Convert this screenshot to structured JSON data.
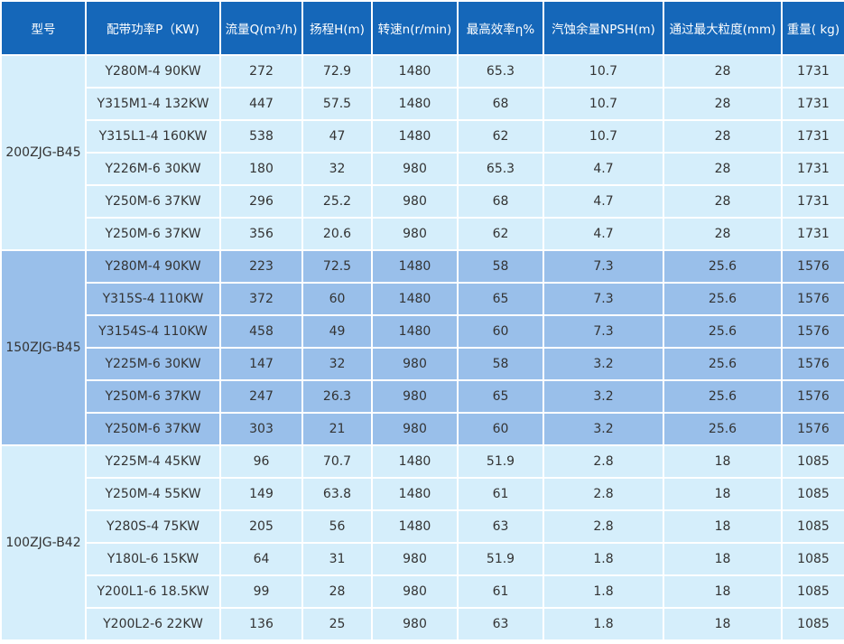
{
  "headers": [
    "型号",
    "配带功率P（KW)",
    "流量Q(m³/h)",
    "扬程H(m)",
    "转速n(r/min)",
    "最高效率η%",
    "汽蚀余量NPSH(m)",
    "通过最大粒度(mm)",
    "重量( kg)"
  ],
  "groups": [
    {
      "model": "200ZJG-B45",
      "rows": [
        [
          "Y280M-4  90KW",
          "272",
          "72.9",
          "1480",
          "65.3",
          "10.7",
          "28",
          "1731"
        ],
        [
          "Y315M1-4  132KW",
          "447",
          "57.5",
          "1480",
          "68",
          "10.7",
          "28",
          "1731"
        ],
        [
          "Y315L1-4  160KW",
          "538",
          "47",
          "1480",
          "62",
          "10.7",
          "28",
          "1731"
        ],
        [
          "Y226M-6  30KW",
          "180",
          "32",
          "980",
          "65.3",
          "4.7",
          "28",
          "1731"
        ],
        [
          "Y250M-6  37KW",
          "296",
          "25.2",
          "980",
          "68",
          "4.7",
          "28",
          "1731"
        ],
        [
          "Y250M-6 37KW",
          "356",
          "20.6",
          "980",
          "62",
          "4.7",
          "28",
          "1731"
        ]
      ]
    },
    {
      "model": "150ZJG-B45",
      "rows": [
        [
          "Y280M-4  90KW",
          "223",
          "72.5",
          "1480",
          "58",
          "7.3",
          "25.6",
          "1576"
        ],
        [
          "Y315S-4  110KW",
          "372",
          "60",
          "1480",
          "65",
          "7.3",
          "25.6",
          "1576"
        ],
        [
          "Y3154S-4  110KW",
          "458",
          "49",
          "1480",
          "60",
          "7.3",
          "25.6",
          "1576"
        ],
        [
          "Y225M-6  30KW",
          "147",
          "32",
          "980",
          "58",
          "3.2",
          "25.6",
          "1576"
        ],
        [
          "Y250M-6  37KW",
          "247",
          "26.3",
          "980",
          "65",
          "3.2",
          "25.6",
          "1576"
        ],
        [
          "Y250M-6  37KW",
          "303",
          "21",
          "980",
          "60",
          "3.2",
          "25.6",
          "1576"
        ]
      ]
    },
    {
      "model": "100ZJG-B42",
      "rows": [
        [
          "Y225M-4  45KW",
          "96",
          "70.7",
          "1480",
          "51.9",
          "2.8",
          "18",
          "1085"
        ],
        [
          "Y250M-4  55KW",
          "149",
          "63.8",
          "1480",
          "61",
          "2.8",
          "18",
          "1085"
        ],
        [
          "Y280S-4  75KW",
          "205",
          "56",
          "1480",
          "63",
          "2.8",
          "18",
          "1085"
        ],
        [
          "Y180L-6  15KW",
          "64",
          "31",
          "980",
          "51.9",
          "1.8",
          "18",
          "1085"
        ],
        [
          "Y200L1-6  18.5KW",
          "99",
          "28",
          "980",
          "61",
          "1.8",
          "18",
          "1085"
        ],
        [
          "Y200L2-6  22KW",
          "136",
          "25",
          "980",
          "63",
          "1.8",
          "18",
          "1085"
        ]
      ]
    }
  ]
}
